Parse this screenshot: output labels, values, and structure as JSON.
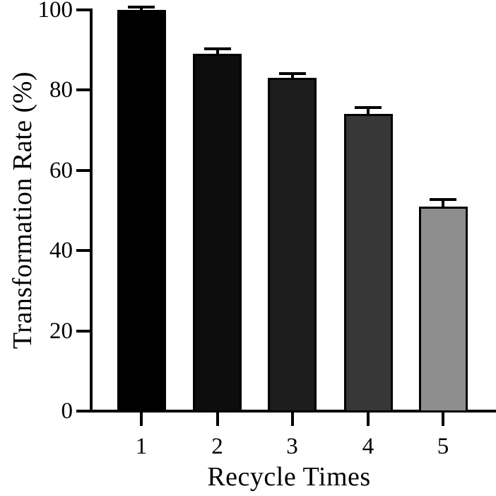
{
  "chart_data": {
    "type": "bar",
    "title": "",
    "xlabel": "Recycle Times",
    "ylabel": "Transformation Rate (%)",
    "categories": [
      "1",
      "2",
      "3",
      "4",
      "5"
    ],
    "values": [
      100,
      89,
      83,
      74,
      51
    ],
    "errors": [
      0.5,
      1.2,
      1.0,
      1.4,
      1.6
    ],
    "error_bars": "upper caps only",
    "bar_colors": [
      "#000000",
      "#0d0d0d",
      "#1d1d1d",
      "#373737",
      "#8e8e8e"
    ],
    "bar_border_color": "#000000",
    "axis_color": "#000000",
    "background_color": "#ffffff",
    "ylim": [
      0,
      100
    ],
    "yticks": [
      0,
      20,
      40,
      60,
      80,
      100
    ],
    "grid": false,
    "legend": "none"
  }
}
